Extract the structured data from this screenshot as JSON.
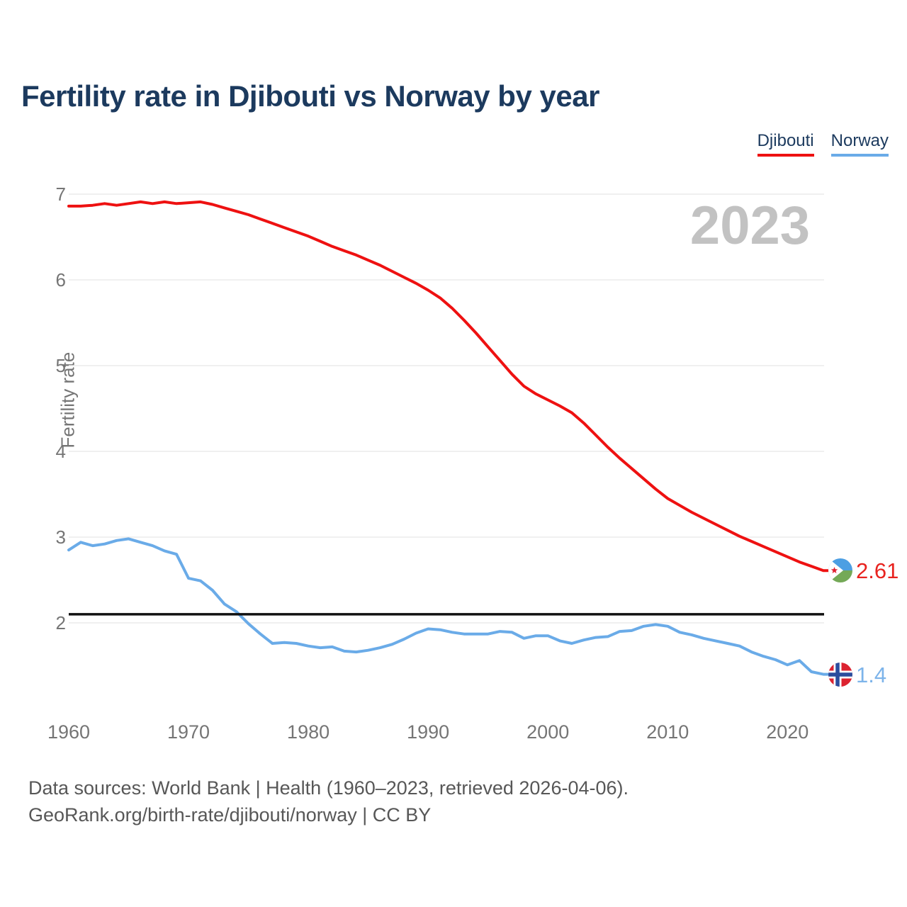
{
  "header": {
    "title": "Fertility rate in Djibouti vs Norway by year"
  },
  "legend": [
    {
      "label": "Djibouti",
      "color": "#ee1111"
    },
    {
      "label": "Norway",
      "color": "#6aabe8"
    }
  ],
  "watermark": "2023",
  "chart_data": {
    "type": "line",
    "title": "Fertility rate in Djibouti vs Norway by year",
    "xlabel": "",
    "ylabel": "Fertility rate",
    "x_ticks": [
      1960,
      1970,
      1980,
      1990,
      2000,
      2010,
      2020
    ],
    "y_ticks": [
      7,
      6,
      5,
      4,
      3,
      2
    ],
    "ylim": [
      1.3,
      7.05
    ],
    "xlim": [
      1960,
      2023
    ],
    "grid": true,
    "legend_position": "top-right",
    "x": [
      1960,
      1961,
      1962,
      1963,
      1964,
      1965,
      1966,
      1967,
      1968,
      1969,
      1970,
      1971,
      1972,
      1973,
      1974,
      1975,
      1976,
      1977,
      1978,
      1979,
      1980,
      1981,
      1982,
      1983,
      1984,
      1985,
      1986,
      1987,
      1988,
      1989,
      1990,
      1991,
      1992,
      1993,
      1994,
      1995,
      1996,
      1997,
      1998,
      1999,
      2000,
      2001,
      2002,
      2003,
      2004,
      2005,
      2006,
      2007,
      2008,
      2009,
      2010,
      2011,
      2012,
      2013,
      2014,
      2015,
      2016,
      2017,
      2018,
      2019,
      2020,
      2021,
      2022,
      2023
    ],
    "series": [
      {
        "name": "Djibouti",
        "color": "#ee1111",
        "end_label": "2.61",
        "end_value": 2.61,
        "values": [
          6.86,
          6.86,
          6.87,
          6.89,
          6.87,
          6.89,
          6.91,
          6.89,
          6.91,
          6.89,
          6.9,
          6.91,
          6.88,
          6.84,
          6.8,
          6.76,
          6.71,
          6.66,
          6.61,
          6.56,
          6.51,
          6.45,
          6.39,
          6.34,
          6.29,
          6.23,
          6.17,
          6.1,
          6.03,
          5.96,
          5.88,
          5.79,
          5.67,
          5.53,
          5.38,
          5.22,
          5.06,
          4.9,
          4.76,
          4.67,
          4.6,
          4.53,
          4.45,
          4.33,
          4.19,
          4.05,
          3.92,
          3.8,
          3.68,
          3.56,
          3.45,
          3.37,
          3.29,
          3.22,
          3.15,
          3.08,
          3.01,
          2.95,
          2.89,
          2.83,
          2.77,
          2.71,
          2.66,
          2.61
        ]
      },
      {
        "name": "Norway",
        "color": "#6aabe8",
        "end_label": "1.4",
        "end_value": 1.4,
        "values": [
          2.85,
          2.94,
          2.9,
          2.92,
          2.96,
          2.98,
          2.94,
          2.9,
          2.84,
          2.8,
          2.52,
          2.49,
          2.38,
          2.22,
          2.13,
          1.99,
          1.87,
          1.76,
          1.77,
          1.76,
          1.73,
          1.71,
          1.72,
          1.67,
          1.66,
          1.68,
          1.71,
          1.75,
          1.81,
          1.88,
          1.93,
          1.92,
          1.89,
          1.87,
          1.87,
          1.87,
          1.9,
          1.89,
          1.82,
          1.85,
          1.85,
          1.79,
          1.76,
          1.8,
          1.83,
          1.84,
          1.9,
          1.91,
          1.96,
          1.98,
          1.96,
          1.89,
          1.86,
          1.82,
          1.79,
          1.76,
          1.73,
          1.66,
          1.61,
          1.57,
          1.51,
          1.56,
          1.43,
          1.4
        ]
      }
    ],
    "reference_line": {
      "value": 2.1,
      "color": "#111111"
    }
  },
  "footer": {
    "line1": "Data sources: World Bank | Health (1960–2023, retrieved 2026-04-06).",
    "line2": "GeoRank.org/birth-rate/djibouti/norway | CC BY"
  }
}
